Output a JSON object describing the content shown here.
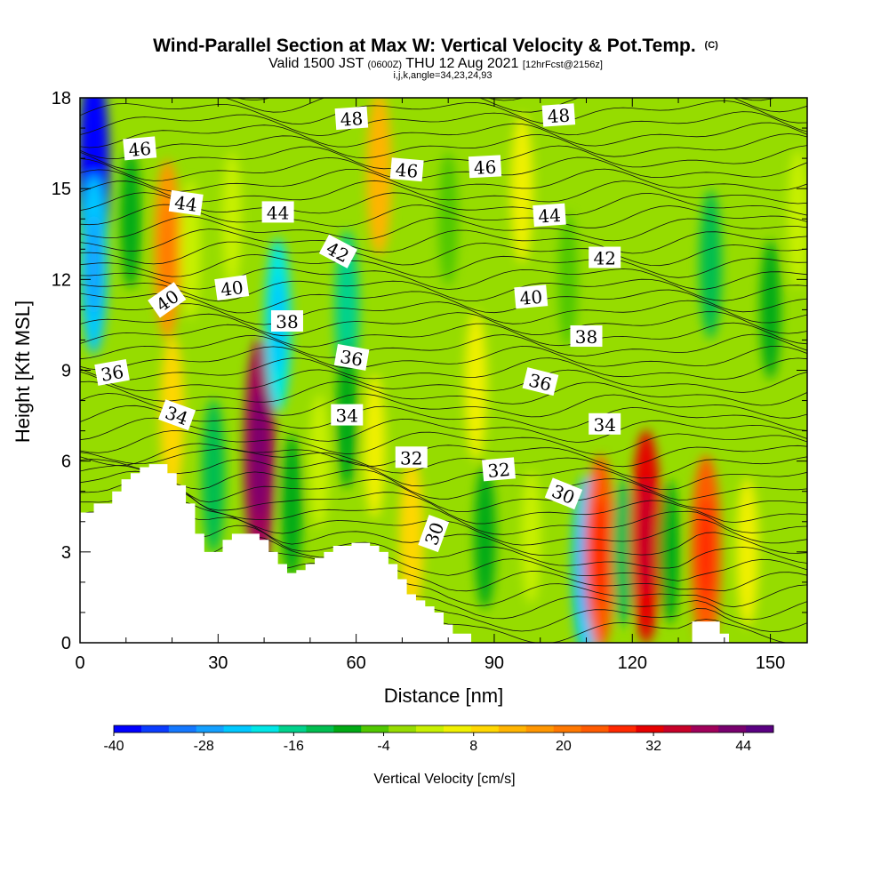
{
  "title": {
    "main": "Wind-Parallel Section at Max W: Vertical Velocity & Pot.Temp.",
    "main_mark": "(C)",
    "valid_pre": "Valid 1500 JST",
    "valid_utc": "(0600Z)",
    "valid_post": "THU 12 Aug 2021",
    "fcst": "[12hrFcst@2156z]",
    "params": "i,j,k,angle=34,23,24,93"
  },
  "chart_data": {
    "type": "heatmap",
    "xlabel": "Distance [nm]",
    "ylabel": "Height [Kft MSL]",
    "xlim": [
      0,
      158
    ],
    "ylim": [
      0,
      18
    ],
    "xticks": [
      0,
      30,
      60,
      90,
      120,
      150
    ],
    "yticks": [
      0,
      3,
      6,
      9,
      12,
      15,
      18
    ],
    "colorbar": {
      "label": "Vertical Velocity [cm/s]",
      "ticks": [
        -40,
        -28,
        -16,
        -4,
        8,
        20,
        32,
        44
      ],
      "range": [
        -40,
        48
      ],
      "step": 4,
      "colors": [
        "#0000ff",
        "#0a3cff",
        "#1478ff",
        "#14a0ff",
        "#00c8ff",
        "#00e6e6",
        "#00d28c",
        "#00be50",
        "#00aa14",
        "#50c800",
        "#96dc00",
        "#c8f000",
        "#f0f000",
        "#ffd700",
        "#ffb400",
        "#ff9600",
        "#ff7800",
        "#ff5a00",
        "#ff2800",
        "#e60000",
        "#c80028",
        "#a0005a",
        "#78006e",
        "#5a0082"
      ]
    },
    "terrain_profile": {
      "distance_nm": [
        0,
        3,
        5,
        7,
        9,
        11,
        13,
        15,
        17,
        19,
        21,
        23,
        25,
        27,
        29,
        31,
        33,
        35,
        37,
        39,
        41,
        43,
        45,
        47,
        49,
        51,
        53,
        55,
        57,
        59,
        61,
        63,
        65,
        67,
        69,
        71,
        73,
        75,
        77,
        79,
        81,
        83,
        85,
        87,
        89,
        91,
        93,
        95,
        97,
        99,
        101,
        103,
        105,
        107,
        109,
        111,
        113,
        115,
        117,
        119,
        121,
        123,
        125,
        127,
        129,
        131,
        133,
        135,
        137,
        139,
        141,
        143,
        145,
        147,
        149,
        151,
        153,
        155,
        158
      ],
      "height_kft": [
        4.3,
        4.6,
        4.6,
        5.0,
        5.4,
        5.6,
        5.8,
        5.9,
        5.9,
        5.6,
        5.2,
        4.6,
        3.6,
        3.0,
        3.0,
        3.4,
        3.6,
        3.6,
        3.6,
        3.4,
        3.0,
        2.6,
        2.3,
        2.4,
        2.6,
        2.8,
        3.0,
        3.2,
        3.2,
        3.3,
        3.3,
        3.2,
        3.0,
        2.6,
        2.1,
        1.6,
        1.4,
        1.2,
        1.0,
        0.6,
        0.3,
        0.3,
        0.0,
        0.0,
        0.0,
        0.0,
        0.0,
        0.0,
        0.0,
        0.0,
        0.0,
        0.0,
        0.0,
        0.0,
        0.0,
        0.0,
        0.0,
        0.0,
        0.0,
        0.0,
        0.0,
        0.0,
        0.0,
        0.0,
        0.0,
        0.0,
        0.7,
        0.7,
        0.7,
        0.3,
        0.0,
        0.0,
        0.0,
        0.0,
        0.0,
        0.0,
        0.0,
        0.0,
        0.0
      ]
    },
    "vertical_velocity_features": [
      {
        "x": 3,
        "y": 15.5,
        "value": -40
      },
      {
        "x": 3,
        "y": 12.5,
        "value": -22
      },
      {
        "x": 11,
        "y": 14.0,
        "value": -6
      },
      {
        "x": 19,
        "y": 13.0,
        "value": 22
      },
      {
        "x": 20,
        "y": 7.5,
        "value": 14
      },
      {
        "x": 24,
        "y": 13.0,
        "value": 6
      },
      {
        "x": 29,
        "y": 5.5,
        "value": -12
      },
      {
        "x": 33,
        "y": 14.0,
        "value": 4
      },
      {
        "x": 39,
        "y": 6.2,
        "value": 44
      },
      {
        "x": 43,
        "y": 10.5,
        "value": -20
      },
      {
        "x": 46,
        "y": 4.5,
        "value": -8
      },
      {
        "x": 52,
        "y": 6.0,
        "value": 4
      },
      {
        "x": 58,
        "y": 11.0,
        "value": -14
      },
      {
        "x": 58,
        "y": 7.5,
        "value": -8
      },
      {
        "x": 65,
        "y": 15.5,
        "value": 16
      },
      {
        "x": 64,
        "y": 6.5,
        "value": 8
      },
      {
        "x": 72,
        "y": 3.5,
        "value": 14
      },
      {
        "x": 80,
        "y": 14.0,
        "value": -4
      },
      {
        "x": 86,
        "y": 8.5,
        "value": 10
      },
      {
        "x": 88,
        "y": 3.5,
        "value": -8
      },
      {
        "x": 96,
        "y": 15.0,
        "value": 10
      },
      {
        "x": 98,
        "y": 3.5,
        "value": 4
      },
      {
        "x": 106,
        "y": 12.0,
        "value": -4
      },
      {
        "x": 110,
        "y": 2.5,
        "value": -24
      },
      {
        "x": 113,
        "y": 3.0,
        "value": 28
      },
      {
        "x": 118,
        "y": 3.0,
        "value": -10
      },
      {
        "x": 123,
        "y": 3.5,
        "value": 36
      },
      {
        "x": 128,
        "y": 3.0,
        "value": -8
      },
      {
        "x": 136,
        "y": 3.0,
        "value": 28
      },
      {
        "x": 137,
        "y": 12.5,
        "value": -10
      },
      {
        "x": 145,
        "y": 3.0,
        "value": 10
      },
      {
        "x": 150,
        "y": 11.0,
        "value": -6
      },
      {
        "x": 156,
        "y": 14.0,
        "value": 6
      }
    ],
    "potential_temperature_labels": [
      {
        "text": "46",
        "x": 13,
        "y": 16.3,
        "angle": -5
      },
      {
        "text": "44",
        "x": 23,
        "y": 14.5,
        "angle": 8
      },
      {
        "text": "44",
        "x": 43,
        "y": 14.2,
        "angle": 0
      },
      {
        "text": "48",
        "x": 59,
        "y": 17.3,
        "angle": -4
      },
      {
        "text": "46",
        "x": 71,
        "y": 15.6,
        "angle": 5
      },
      {
        "text": "46",
        "x": 88,
        "y": 15.7,
        "angle": -3
      },
      {
        "text": "48",
        "x": 104,
        "y": 17.4,
        "angle": -4
      },
      {
        "text": "44",
        "x": 102,
        "y": 14.1,
        "angle": -4
      },
      {
        "text": "42",
        "x": 56,
        "y": 12.9,
        "angle": 28
      },
      {
        "text": "42",
        "x": 114,
        "y": 12.7,
        "angle": 0
      },
      {
        "text": "40",
        "x": 19,
        "y": 11.3,
        "angle": -35
      },
      {
        "text": "40",
        "x": 33,
        "y": 11.7,
        "angle": -8
      },
      {
        "text": "40",
        "x": 98,
        "y": 11.4,
        "angle": -5
      },
      {
        "text": "38",
        "x": 45,
        "y": 10.6,
        "angle": 0
      },
      {
        "text": "38",
        "x": 110,
        "y": 10.1,
        "angle": 0
      },
      {
        "text": "36",
        "x": 7,
        "y": 8.9,
        "angle": -10
      },
      {
        "text": "36",
        "x": 59,
        "y": 9.4,
        "angle": 10
      },
      {
        "text": "36",
        "x": 100,
        "y": 8.6,
        "angle": 14
      },
      {
        "text": "34",
        "x": 21,
        "y": 7.5,
        "angle": 20
      },
      {
        "text": "34",
        "x": 58,
        "y": 7.5,
        "angle": 0
      },
      {
        "text": "34",
        "x": 114,
        "y": 7.2,
        "angle": 0
      },
      {
        "text": "32",
        "x": 72,
        "y": 6.1,
        "angle": 0
      },
      {
        "text": "32",
        "x": 91,
        "y": 5.7,
        "angle": -5
      },
      {
        "text": "30",
        "x": 105,
        "y": 4.9,
        "angle": 22
      },
      {
        "text": "30",
        "x": 77,
        "y": 3.6,
        "angle": -70
      }
    ]
  }
}
